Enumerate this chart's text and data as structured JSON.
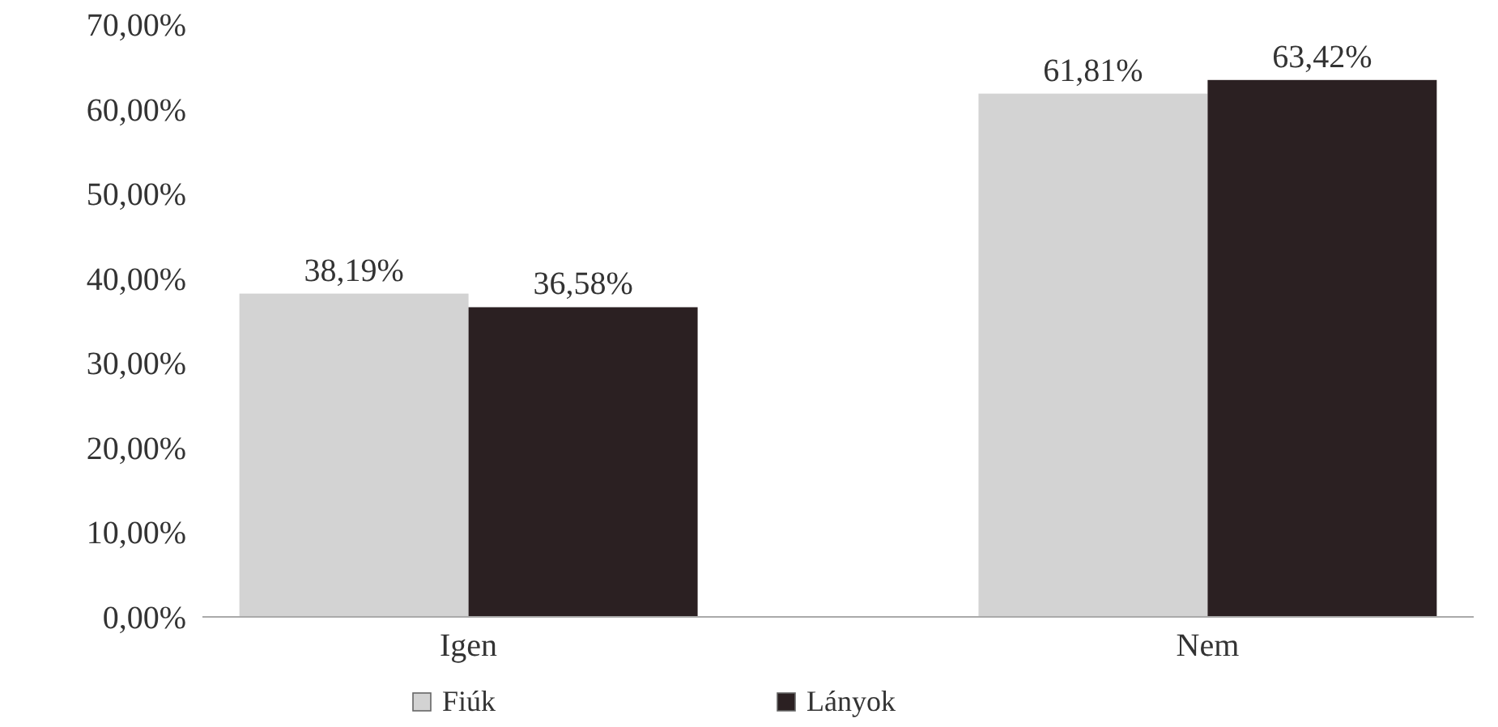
{
  "chart_data": {
    "type": "bar",
    "categories": [
      "Igen",
      "Nem"
    ],
    "series": [
      {
        "name": "Fiúk",
        "color": "#d3d3d3",
        "values": [
          38.19,
          61.81
        ],
        "value_labels": [
          "38,19%",
          "61,81%"
        ]
      },
      {
        "name": "Lányok",
        "color": "#2b2022",
        "values": [
          36.58,
          63.42
        ],
        "value_labels": [
          "36,58%",
          "63,42%"
        ]
      }
    ],
    "ylim": [
      0,
      70
    ],
    "yticks": [
      {
        "value": 0,
        "label": "0,00%"
      },
      {
        "value": 10,
        "label": "10,00%"
      },
      {
        "value": 20,
        "label": "20,00%"
      },
      {
        "value": 30,
        "label": "30,00%"
      },
      {
        "value": 40,
        "label": "40,00%"
      },
      {
        "value": 50,
        "label": "50,00%"
      },
      {
        "value": 60,
        "label": "60,00%"
      },
      {
        "value": 70,
        "label": "70,00%"
      }
    ],
    "grid": false,
    "legend": "bottom"
  }
}
